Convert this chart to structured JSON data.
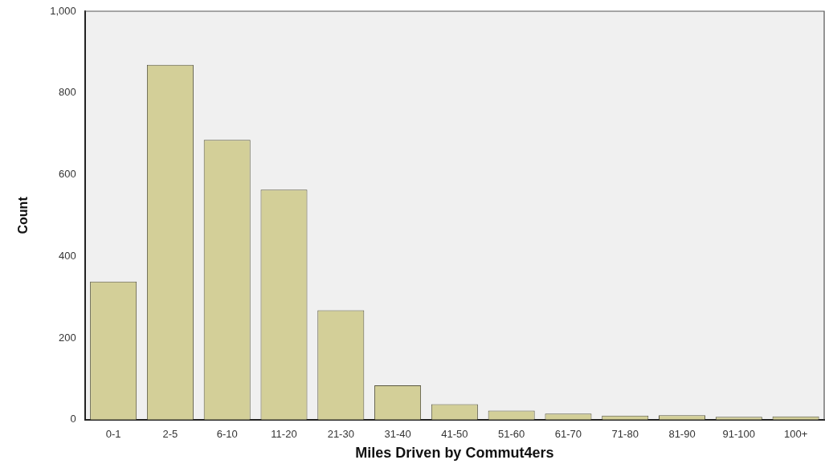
{
  "chart_data": {
    "type": "bar",
    "xlabel": "Miles Driven by Commut4ers",
    "ylabel": "Count",
    "categories": [
      "0-1",
      "2-5",
      "6-10",
      "11-20",
      "21-30",
      "31-40",
      "41-50",
      "51-60",
      "61-70",
      "71-80",
      "81-90",
      "91-100",
      "100+"
    ],
    "values": [
      338,
      869,
      685,
      563,
      268,
      84,
      38,
      22,
      15,
      10,
      11,
      7,
      8
    ],
    "color": "#d3cf98",
    "ylim": [
      0,
      1000
    ],
    "yticks": [
      0,
      200,
      400,
      600,
      800,
      {
        "value": 1000,
        "label": "1,000"
      }
    ],
    "grid": false,
    "legend": false
  }
}
